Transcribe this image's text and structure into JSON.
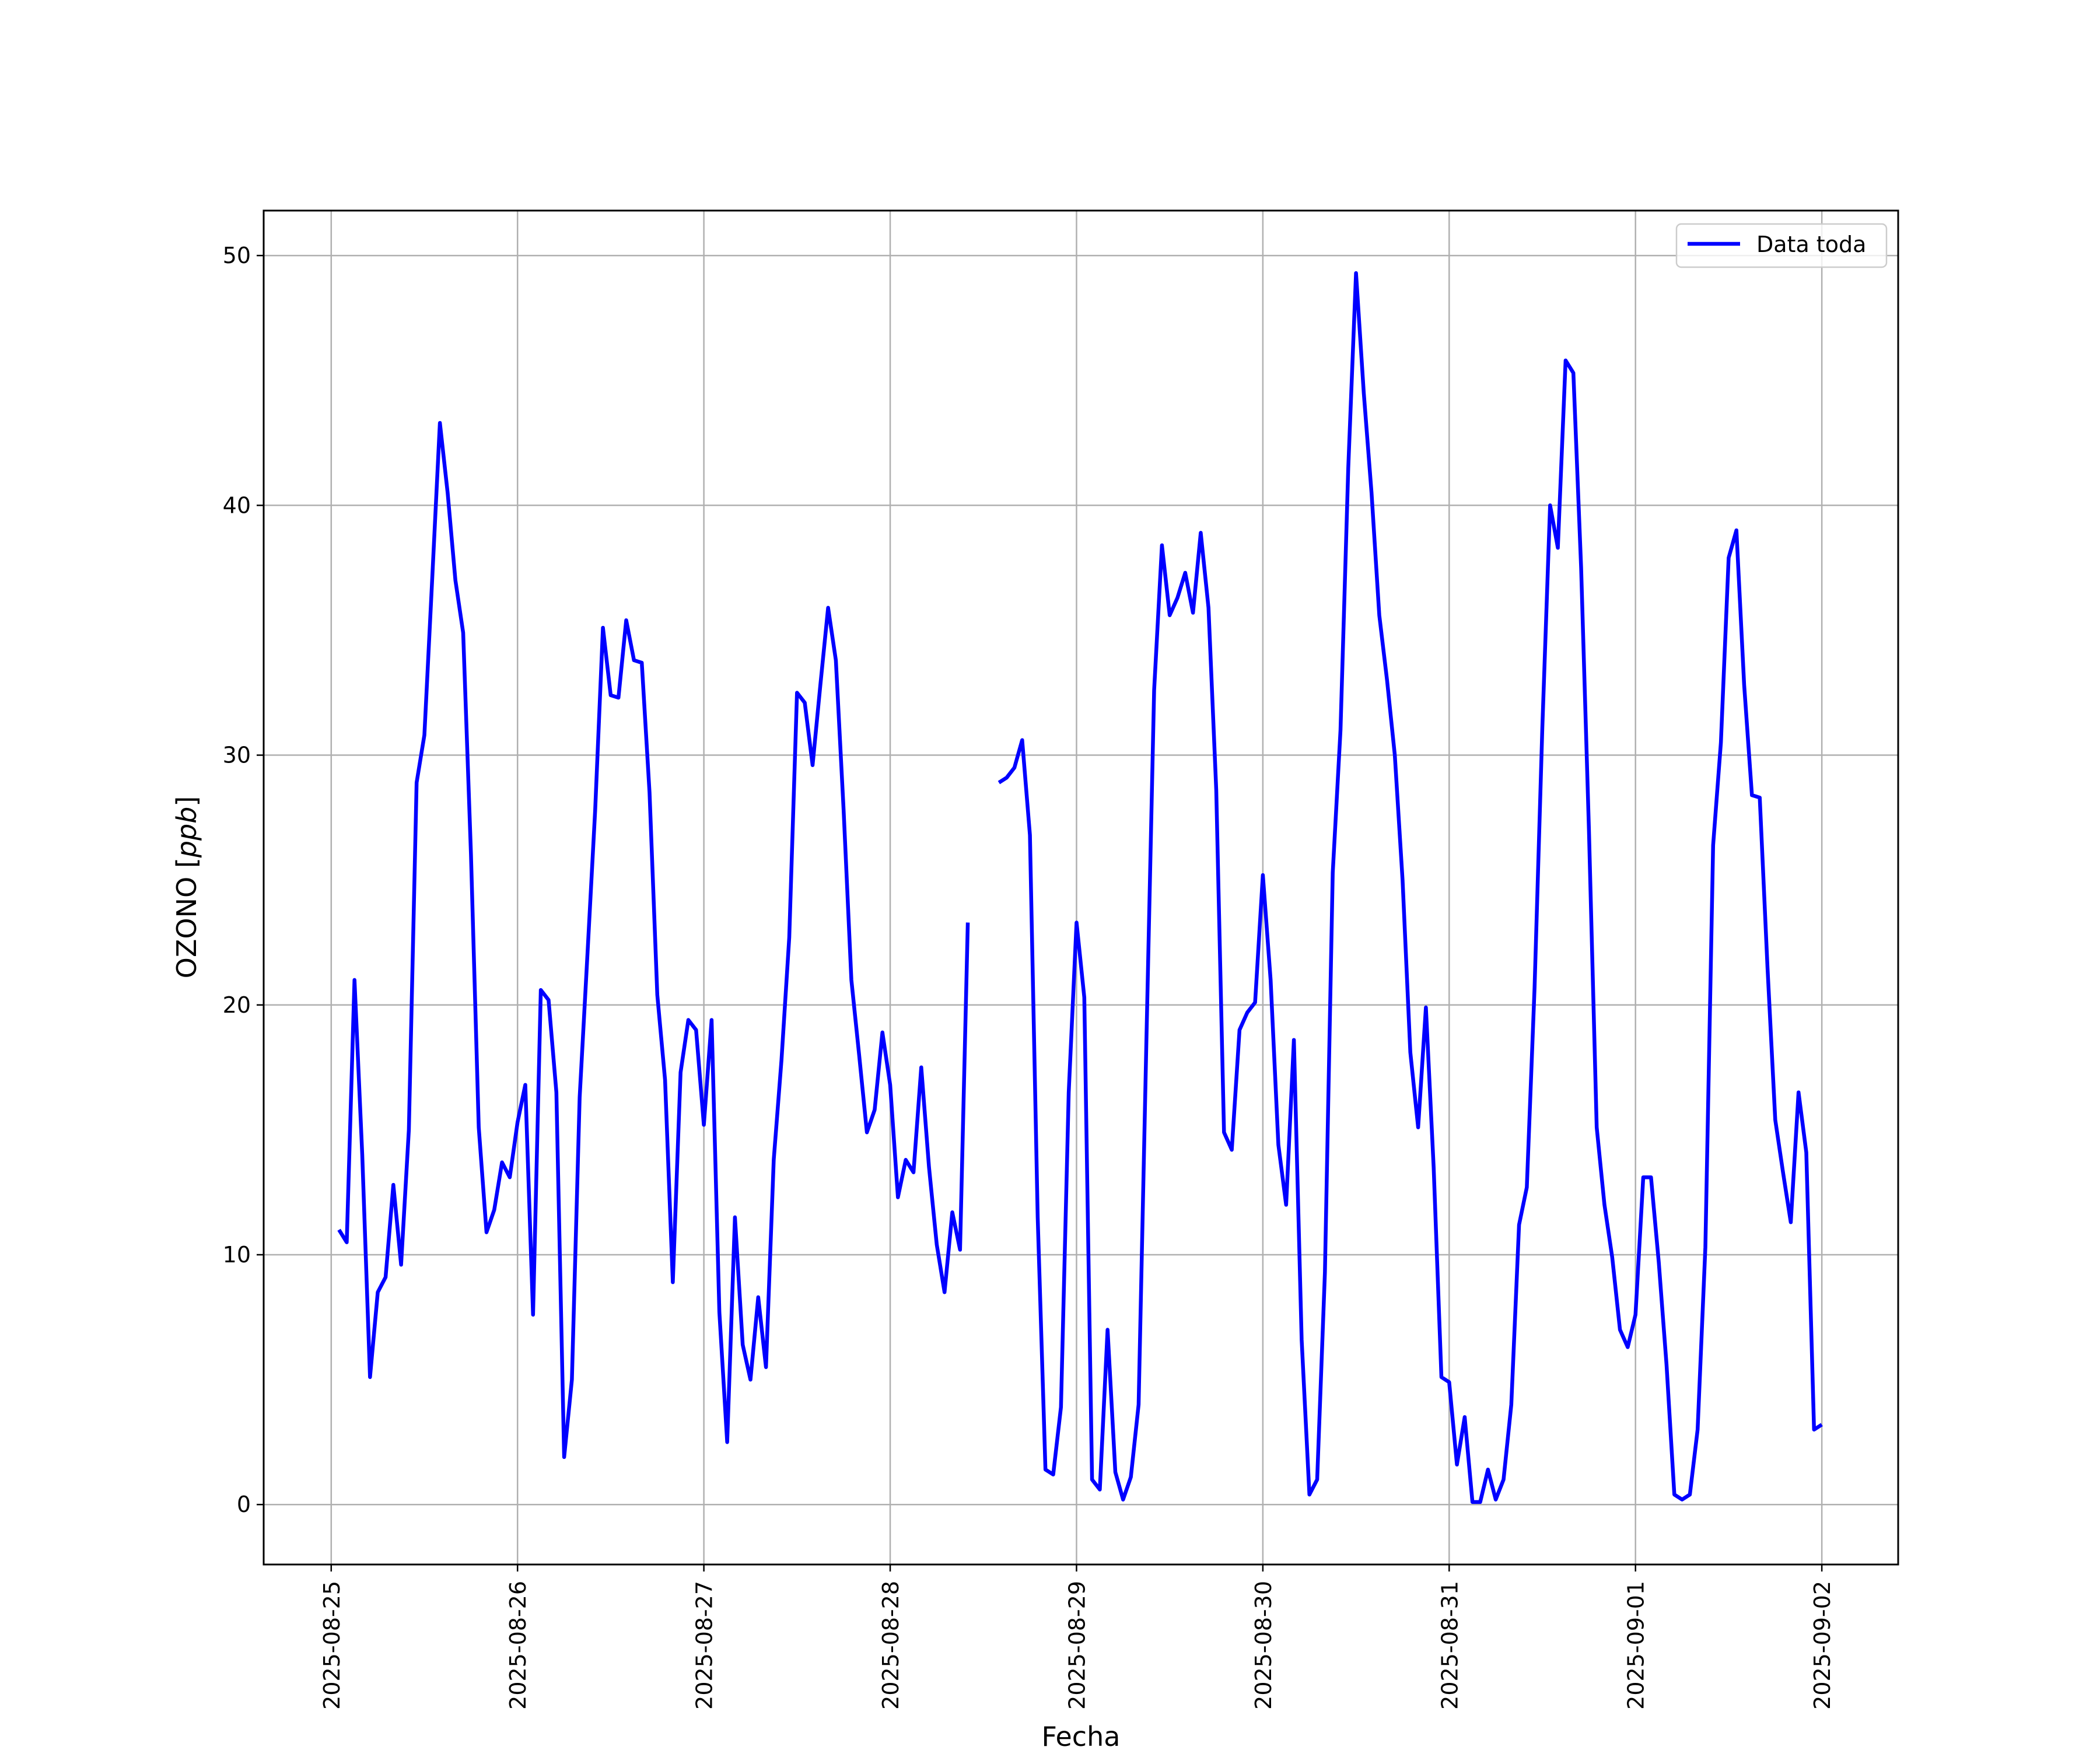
{
  "chart_data": {
    "type": "line",
    "xlabel": "Fecha",
    "ylabel_text": "OZONO [",
    "ylabel_unit": "ppb",
    "ylabel_close": "]",
    "ylim": [
      -2.4,
      51.8
    ],
    "xlim": [
      "2025-08-24 15:18",
      "2025-09-02 09:50"
    ],
    "yticks": [
      0,
      10,
      20,
      30,
      40,
      50
    ],
    "xticks": [
      "2025-08-25",
      "2025-08-26",
      "2025-08-27",
      "2025-08-28",
      "2025-08-29",
      "2025-08-30",
      "2025-08-31",
      "2025-09-01",
      "2025-09-02"
    ],
    "grid": true,
    "legend": {
      "position": "top-right",
      "entries": [
        "Data toda"
      ]
    },
    "colors": {
      "line": "#0000ff",
      "grid": "#b0b0b0"
    },
    "series": [
      {
        "name": "Data toda",
        "x": [
          "2025-08-25 01:00",
          "2025-08-25 02:00",
          "2025-08-25 03:00",
          "2025-08-25 04:00",
          "2025-08-25 05:00",
          "2025-08-25 06:00",
          "2025-08-25 07:00",
          "2025-08-25 08:00",
          "2025-08-25 09:00",
          "2025-08-25 10:00",
          "2025-08-25 11:00",
          "2025-08-25 12:00",
          "2025-08-25 13:00",
          "2025-08-25 14:00",
          "2025-08-25 15:00",
          "2025-08-25 16:00",
          "2025-08-25 17:00",
          "2025-08-25 18:00",
          "2025-08-25 19:00",
          "2025-08-25 20:00",
          "2025-08-25 21:00",
          "2025-08-25 22:00",
          "2025-08-25 23:00",
          "2025-08-26 00:00",
          "2025-08-26 01:00",
          "2025-08-26 02:00",
          "2025-08-26 03:00",
          "2025-08-26 04:00",
          "2025-08-26 05:00",
          "2025-08-26 06:00",
          "2025-08-26 07:00",
          "2025-08-26 08:00",
          "2025-08-26 09:00",
          "2025-08-26 10:00",
          "2025-08-26 11:00",
          "2025-08-26 12:00",
          "2025-08-26 13:00",
          "2025-08-26 14:00",
          "2025-08-26 15:00",
          "2025-08-26 16:00",
          "2025-08-26 17:00",
          "2025-08-26 18:00",
          "2025-08-26 19:00",
          "2025-08-26 20:00",
          "2025-08-26 21:00",
          "2025-08-26 22:00",
          "2025-08-26 23:00",
          "2025-08-27 00:00",
          "2025-08-27 01:00",
          "2025-08-27 02:00",
          "2025-08-27 03:00",
          "2025-08-27 04:00",
          "2025-08-27 05:00",
          "2025-08-27 06:00",
          "2025-08-27 07:00",
          "2025-08-27 08:00",
          "2025-08-27 09:00",
          "2025-08-27 10:00",
          "2025-08-27 11:00",
          "2025-08-27 12:00",
          "2025-08-27 13:00",
          "2025-08-27 14:00",
          "2025-08-27 15:00",
          "2025-08-27 16:00",
          "2025-08-27 17:00",
          "2025-08-27 18:00",
          "2025-08-27 19:00",
          "2025-08-27 20:00",
          "2025-08-27 21:00",
          "2025-08-27 22:00",
          "2025-08-27 23:00",
          "2025-08-28 00:00",
          "2025-08-28 01:00",
          "2025-08-28 02:00",
          "2025-08-28 03:00",
          "2025-08-28 04:00",
          "2025-08-28 05:00",
          "2025-08-28 06:00",
          "2025-08-28 07:00",
          "2025-08-28 08:00",
          "2025-08-28 09:00",
          "2025-08-28 10:00",
          null,
          "2025-08-28 14:00",
          "2025-08-28 15:00",
          "2025-08-28 16:00",
          "2025-08-28 17:00",
          "2025-08-28 18:00",
          "2025-08-28 19:00",
          "2025-08-28 20:00",
          "2025-08-28 21:00",
          "2025-08-28 22:00",
          "2025-08-28 23:00",
          "2025-08-29 00:00",
          "2025-08-29 01:00",
          "2025-08-29 02:00",
          "2025-08-29 03:00",
          "2025-08-29 04:00",
          "2025-08-29 05:00",
          "2025-08-29 06:00",
          "2025-08-29 07:00",
          "2025-08-29 08:00",
          "2025-08-29 09:00",
          "2025-08-29 10:00",
          "2025-08-29 11:00",
          "2025-08-29 12:00",
          "2025-08-29 13:00",
          "2025-08-29 14:00",
          "2025-08-29 15:00",
          "2025-08-29 16:00",
          "2025-08-29 17:00",
          "2025-08-29 18:00",
          "2025-08-29 19:00",
          "2025-08-29 20:00",
          "2025-08-29 21:00",
          "2025-08-29 22:00",
          "2025-08-29 23:00",
          "2025-08-30 00:00",
          "2025-08-30 01:00",
          "2025-08-30 02:00",
          "2025-08-30 03:00",
          "2025-08-30 04:00",
          "2025-08-30 05:00",
          "2025-08-30 06:00",
          "2025-08-30 07:00",
          "2025-08-30 08:00",
          "2025-08-30 09:00",
          "2025-08-30 10:00",
          "2025-08-30 11:00",
          "2025-08-30 12:00",
          "2025-08-30 13:00",
          "2025-08-30 14:00",
          "2025-08-30 15:00",
          "2025-08-30 16:00",
          "2025-08-30 17:00",
          "2025-08-30 18:00",
          "2025-08-30 19:00",
          "2025-08-30 20:00",
          "2025-08-30 21:00",
          "2025-08-30 22:00",
          "2025-08-30 23:00",
          "2025-08-31 00:00",
          "2025-08-31 01:00",
          "2025-08-31 02:00",
          "2025-08-31 03:00",
          "2025-08-31 04:00",
          "2025-08-31 05:00",
          "2025-08-31 06:00",
          "2025-08-31 07:00",
          "2025-08-31 08:00",
          "2025-08-31 09:00",
          "2025-08-31 10:00",
          "2025-08-31 11:00",
          "2025-08-31 12:00",
          "2025-08-31 13:00",
          "2025-08-31 14:00",
          "2025-08-31 15:00",
          "2025-08-31 16:00",
          "2025-08-31 17:00",
          "2025-08-31 18:00",
          "2025-08-31 19:00",
          "2025-08-31 20:00",
          "2025-08-31 21:00",
          "2025-08-31 22:00",
          "2025-08-31 23:00",
          "2025-09-01 00:00",
          "2025-09-01 01:00",
          "2025-09-01 02:00",
          "2025-09-01 03:00",
          "2025-09-01 04:00",
          "2025-09-01 05:00",
          "2025-09-01 06:00",
          "2025-09-01 07:00",
          "2025-09-01 08:00",
          "2025-09-01 09:00",
          "2025-09-01 10:00",
          "2025-09-01 11:00",
          "2025-09-01 12:00",
          "2025-09-01 13:00",
          "2025-09-01 14:00",
          "2025-09-01 15:00",
          "2025-09-01 16:00",
          "2025-09-01 17:00",
          "2025-09-01 18:00",
          "2025-09-01 19:00",
          "2025-09-01 20:00",
          "2025-09-01 21:00",
          "2025-09-01 22:00",
          "2025-09-01 23:00",
          "2025-09-02 00:00"
        ],
        "values": [
          11.0,
          10.5,
          21.0,
          14.0,
          5.1,
          8.5,
          9.1,
          12.8,
          9.6,
          15.0,
          28.9,
          30.8,
          37.0,
          43.3,
          40.5,
          37.0,
          34.9,
          26.0,
          15.1,
          10.9,
          11.8,
          13.7,
          13.1,
          15.3,
          16.8,
          7.6,
          20.6,
          20.2,
          16.5,
          1.9,
          5.0,
          16.3,
          22.0,
          27.8,
          35.1,
          32.4,
          32.3,
          35.4,
          33.8,
          33.7,
          28.5,
          20.4,
          17.0,
          8.9,
          17.3,
          19.4,
          19.0,
          15.2,
          19.4,
          7.7,
          2.5,
          11.5,
          6.4,
          5.0,
          8.3,
          5.5,
          13.8,
          17.8,
          22.7,
          32.5,
          32.1,
          29.6,
          32.8,
          35.9,
          33.8,
          27.8,
          21.0,
          18.0,
          14.9,
          15.8,
          18.9,
          16.8,
          12.3,
          13.8,
          13.3,
          17.5,
          13.5,
          10.4,
          8.5,
          11.7,
          10.2,
          23.3,
          null,
          28.9,
          29.1,
          29.5,
          30.6,
          26.8,
          11.5,
          1.4,
          1.2,
          3.9,
          16.5,
          23.3,
          20.3,
          1.0,
          0.6,
          7.0,
          1.3,
          0.2,
          1.1,
          4.0,
          18.5,
          32.6,
          38.4,
          35.6,
          36.3,
          37.3,
          35.7,
          38.9,
          35.9,
          28.6,
          14.9,
          14.2,
          19.0,
          19.7,
          20.1,
          25.2,
          21.0,
          14.4,
          12.0,
          18.6,
          6.6,
          0.4,
          1.0,
          9.3,
          25.3,
          31.0,
          41.5,
          49.3,
          44.5,
          40.5,
          35.6,
          33.0,
          30.0,
          25.0,
          18.1,
          15.1,
          19.9,
          13.5,
          5.1,
          4.9,
          1.6,
          3.5,
          0.1,
          0.1,
          1.4,
          0.2,
          1.0,
          4.0,
          11.2,
          12.7,
          20.7,
          31.1,
          40.0,
          38.3,
          45.8,
          45.3,
          37.5,
          27.0,
          15.1,
          12.0,
          9.9,
          7.0,
          6.3,
          7.6,
          13.1,
          13.1,
          9.7,
          5.6,
          0.4,
          0.2,
          0.4,
          3.0,
          10.3,
          26.4,
          30.5,
          37.9,
          39.0,
          32.8,
          28.4,
          28.3,
          21.5,
          15.4,
          13.3,
          11.3,
          16.5,
          14.1,
          3.0,
          3.2
        ]
      }
    ]
  }
}
